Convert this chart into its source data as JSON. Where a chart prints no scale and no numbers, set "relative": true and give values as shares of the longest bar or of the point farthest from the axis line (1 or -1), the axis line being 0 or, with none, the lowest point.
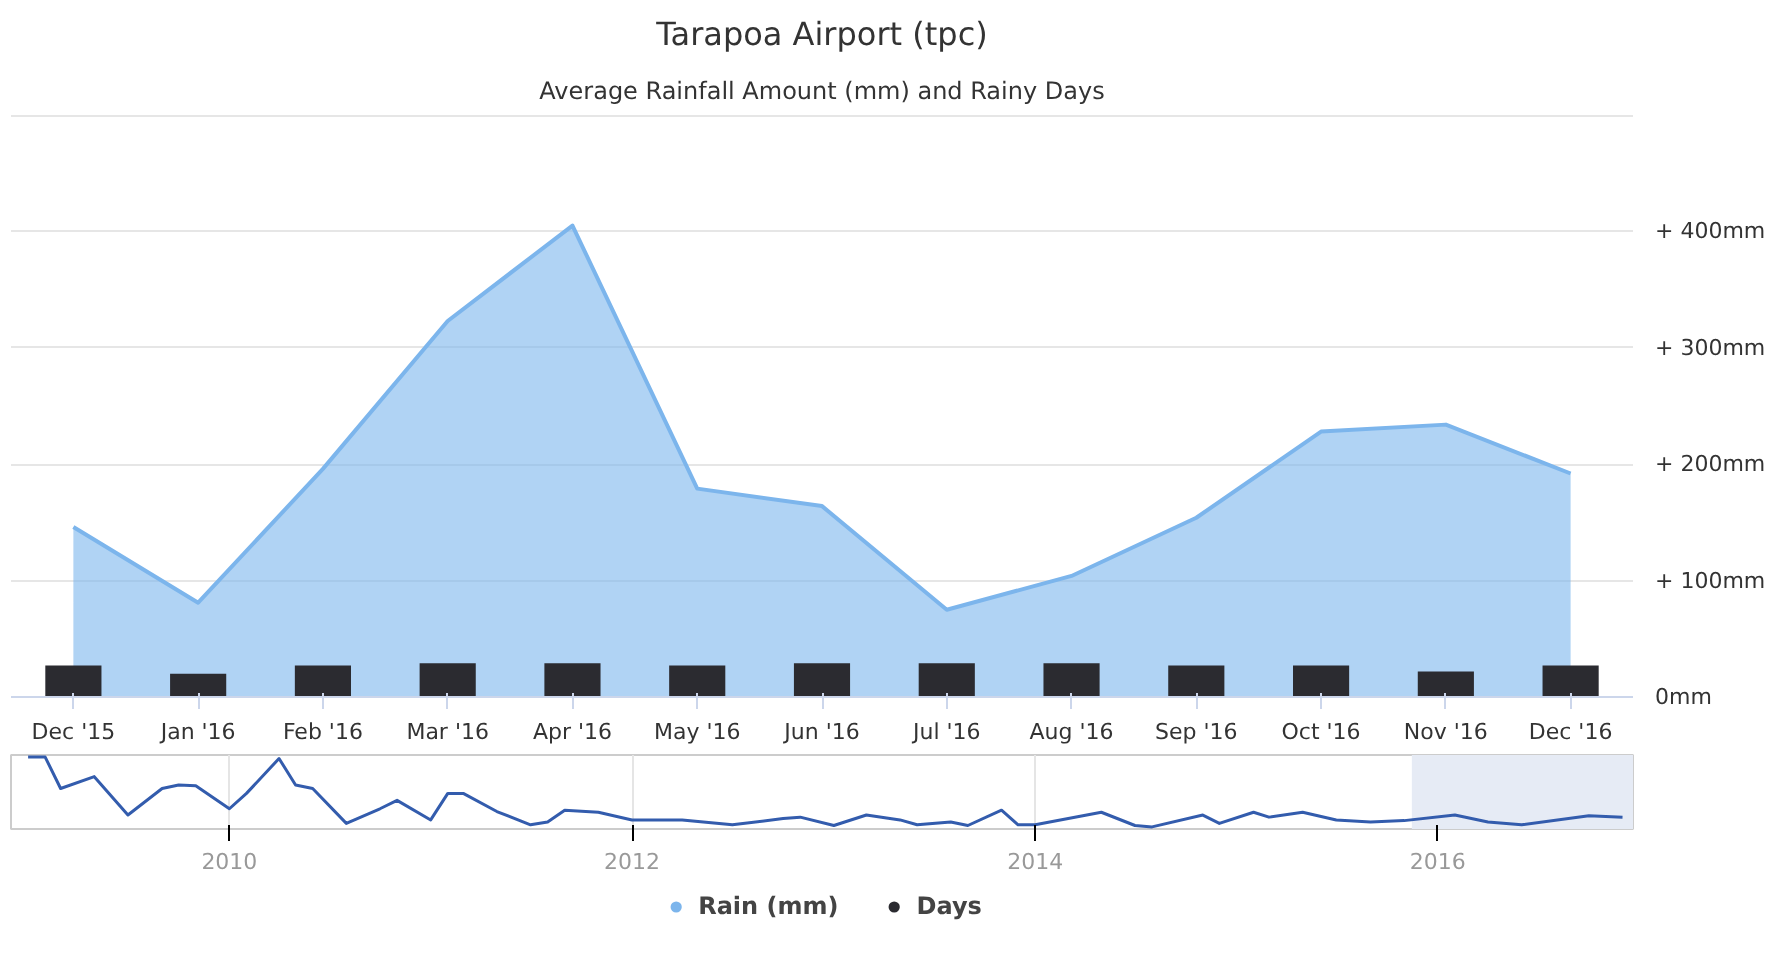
{
  "chart_data": [
    {
      "type": "area",
      "title": "Tarapoa Airport (tpc)",
      "subtitle": "Average Rainfall Amount (mm) and Rainy Days",
      "categories": [
        "Dec '15",
        "Jan '16",
        "Feb '16",
        "Mar '16",
        "Apr '16",
        "May '16",
        "Jun '16",
        "Jul '16",
        "Aug '16",
        "Sep '16",
        "Oct '16",
        "Nov '16",
        "Dec '16"
      ],
      "series": [
        {
          "name": "Rain (mm)",
          "type": "area",
          "color": "#7cb5ec",
          "values": [
            146,
            81,
            196,
            323,
            405,
            179,
            164,
            75,
            104,
            154,
            228,
            234,
            192
          ]
        },
        {
          "name": "Days",
          "type": "bar",
          "color": "#2b2b30",
          "values": [
            27,
            20,
            27,
            29,
            29,
            27,
            29,
            29,
            29,
            27,
            27,
            22,
            27
          ]
        }
      ],
      "ylim": [
        0,
        500
      ],
      "yticks": [
        {
          "value": 0,
          "label": "0mm"
        },
        {
          "value": 100,
          "label": "+ 100mm"
        },
        {
          "value": 200,
          "label": "+ 200mm"
        },
        {
          "value": 300,
          "label": "+ 300mm"
        },
        {
          "value": 400,
          "label": "+ 400mm"
        },
        {
          "value": 500,
          "label": null
        }
      ],
      "grid": "y",
      "legend": "bottom"
    },
    {
      "type": "line",
      "relative": true,
      "tick_labels": "x",
      "grid": "x",
      "x": [
        "2009-01",
        "2009-02",
        "2009-03",
        "2009-05",
        "2009-07",
        "2009-09",
        "2009-10",
        "2009-11",
        "2010-01",
        "2010-02",
        "2010-04",
        "2010-05",
        "2010-06",
        "2010-08",
        "2010-10",
        "2010-11",
        "2011-01",
        "2011-02",
        "2011-03",
        "2011-05",
        "2011-07",
        "2011-08",
        "2011-09",
        "2011-11",
        "2012-01",
        "2012-04",
        "2012-07",
        "2012-10",
        "2012-11",
        "2013-01",
        "2013-03",
        "2013-05",
        "2013-06",
        "2013-08",
        "2013-09",
        "2013-11",
        "2013-12",
        "2014-01",
        "2014-05",
        "2014-07",
        "2014-08",
        "2014-11",
        "2014-12",
        "2015-02",
        "2015-03",
        "2015-05",
        "2015-07",
        "2015-09",
        "2015-11",
        "2016-02",
        "2016-04",
        "2016-06",
        "2016-10",
        "2016-12"
      ],
      "series": [
        {
          "color": "#335cad",
          "values": [
            1,
            1,
            0.55,
            0.72,
            0.17,
            0.55,
            0.6,
            0.59,
            0.26,
            0.48,
            0.98,
            0.6,
            0.55,
            0.05,
            0.26,
            0.38,
            0.1,
            0.48,
            0.48,
            0.22,
            0.03,
            0.07,
            0.24,
            0.21,
            0.1,
            0.1,
            0.03,
            0.12,
            0.14,
            0.02,
            0.17,
            0.1,
            0.03,
            0.07,
            0.02,
            0.24,
            0.03,
            0.03,
            0.21,
            0.02,
            0,
            0.17,
            0.05,
            0.21,
            0.14,
            0.21,
            0.1,
            0.07,
            0.09,
            0.17,
            0.07,
            0.03,
            0.16,
            0.14
          ]
        }
      ],
      "xlim": [
        "2008-12",
        "2016-12-20"
      ],
      "xticks": [
        "2010",
        "2012",
        "2014",
        "2016"
      ],
      "bands": [
        {
          "axis": "x",
          "from": "2015-11-15",
          "to": "2016-12-20",
          "color": "#e6ebf5"
        }
      ]
    }
  ]
}
